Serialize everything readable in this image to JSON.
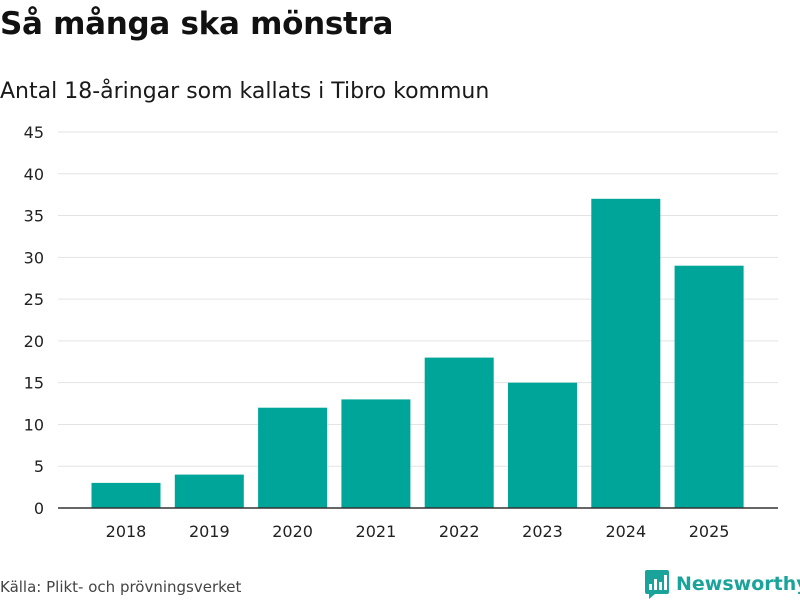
{
  "header": {
    "title": "Så många ska mönstra",
    "subtitle": "Antal 18-åringar som kallats i Tibro kommun"
  },
  "footer": {
    "source": "Källa: Plikt- och prövningsverket",
    "brand": "Newsworthy"
  },
  "colors": {
    "bar": "#00a59a",
    "grid": "#e3e3e3",
    "axis": "#333333",
    "brand": "#1aa39a"
  },
  "chart_data": {
    "type": "bar",
    "title": "Så många ska mönstra",
    "subtitle": "Antal 18-åringar som kallats i Tibro kommun",
    "xlabel": "",
    "ylabel": "",
    "categories": [
      "2018",
      "2019",
      "2020",
      "2021",
      "2022",
      "2023",
      "2024",
      "2025"
    ],
    "values": [
      3,
      4,
      12,
      13,
      18,
      15,
      37,
      29
    ],
    "ylim": [
      0,
      45
    ],
    "yticks": [
      0,
      5,
      10,
      15,
      20,
      25,
      30,
      35,
      40,
      45
    ],
    "grid": true,
    "legend": "none"
  }
}
